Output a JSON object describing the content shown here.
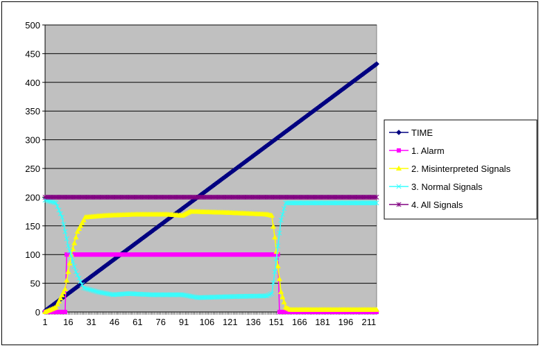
{
  "chart_data": {
    "type": "line",
    "title": "",
    "xlabel": "",
    "ylabel": "",
    "ylim": [
      0,
      500
    ],
    "yticks": [
      0,
      50,
      100,
      150,
      200,
      250,
      300,
      350,
      400,
      450,
      500
    ],
    "x_tick_labels": [
      "1",
      "16",
      "31",
      "46",
      "61",
      "76",
      "91",
      "106",
      "121",
      "136",
      "151",
      "166",
      "181",
      "196",
      "211"
    ],
    "x_range": [
      1,
      216
    ],
    "plot_background": "#c0c0c0",
    "grid": "horizontal",
    "legend_position": "right",
    "series": [
      {
        "name": "TIME",
        "color": "#000080",
        "marker": "diamond",
        "segments": [
          [
            1,
            2
          ],
          [
            216,
            432
          ]
        ]
      },
      {
        "name": "1. Alarm",
        "color": "#ff00ff",
        "marker": "square",
        "segments": [
          [
            1,
            0
          ],
          [
            14,
            0
          ],
          [
            15,
            100
          ],
          [
            152,
            100
          ],
          [
            153,
            0
          ],
          [
            216,
            0
          ]
        ]
      },
      {
        "name": "2. Misinterpreted Signals",
        "color": "#ffff00",
        "marker": "triangle",
        "segments": [
          [
            1,
            0
          ],
          [
            8,
            8
          ],
          [
            14,
            40
          ],
          [
            18,
            100
          ],
          [
            22,
            140
          ],
          [
            27,
            165
          ],
          [
            40,
            168
          ],
          [
            60,
            170
          ],
          [
            80,
            170
          ],
          [
            90,
            168
          ],
          [
            95,
            175
          ],
          [
            120,
            173
          ],
          [
            145,
            170
          ],
          [
            148,
            168
          ],
          [
            150,
            130
          ],
          [
            152,
            80
          ],
          [
            154,
            35
          ],
          [
            157,
            8
          ],
          [
            160,
            4
          ],
          [
            216,
            4
          ]
        ]
      },
      {
        "name": "3. Normal Signals",
        "color": "#33ffff",
        "marker": "x",
        "segments": [
          [
            1,
            195
          ],
          [
            8,
            190
          ],
          [
            12,
            165
          ],
          [
            16,
            115
          ],
          [
            21,
            70
          ],
          [
            26,
            42
          ],
          [
            35,
            35
          ],
          [
            45,
            30
          ],
          [
            55,
            32
          ],
          [
            70,
            30
          ],
          [
            90,
            30
          ],
          [
            100,
            25
          ],
          [
            125,
            27
          ],
          [
            145,
            28
          ],
          [
            148,
            32
          ],
          [
            150,
            70
          ],
          [
            152,
            115
          ],
          [
            154,
            160
          ],
          [
            157,
            190
          ],
          [
            216,
            190
          ]
        ]
      },
      {
        "name": "4. All Signals",
        "color": "#800080",
        "marker": "star",
        "segments": [
          [
            1,
            200
          ],
          [
            216,
            200
          ]
        ]
      }
    ]
  }
}
